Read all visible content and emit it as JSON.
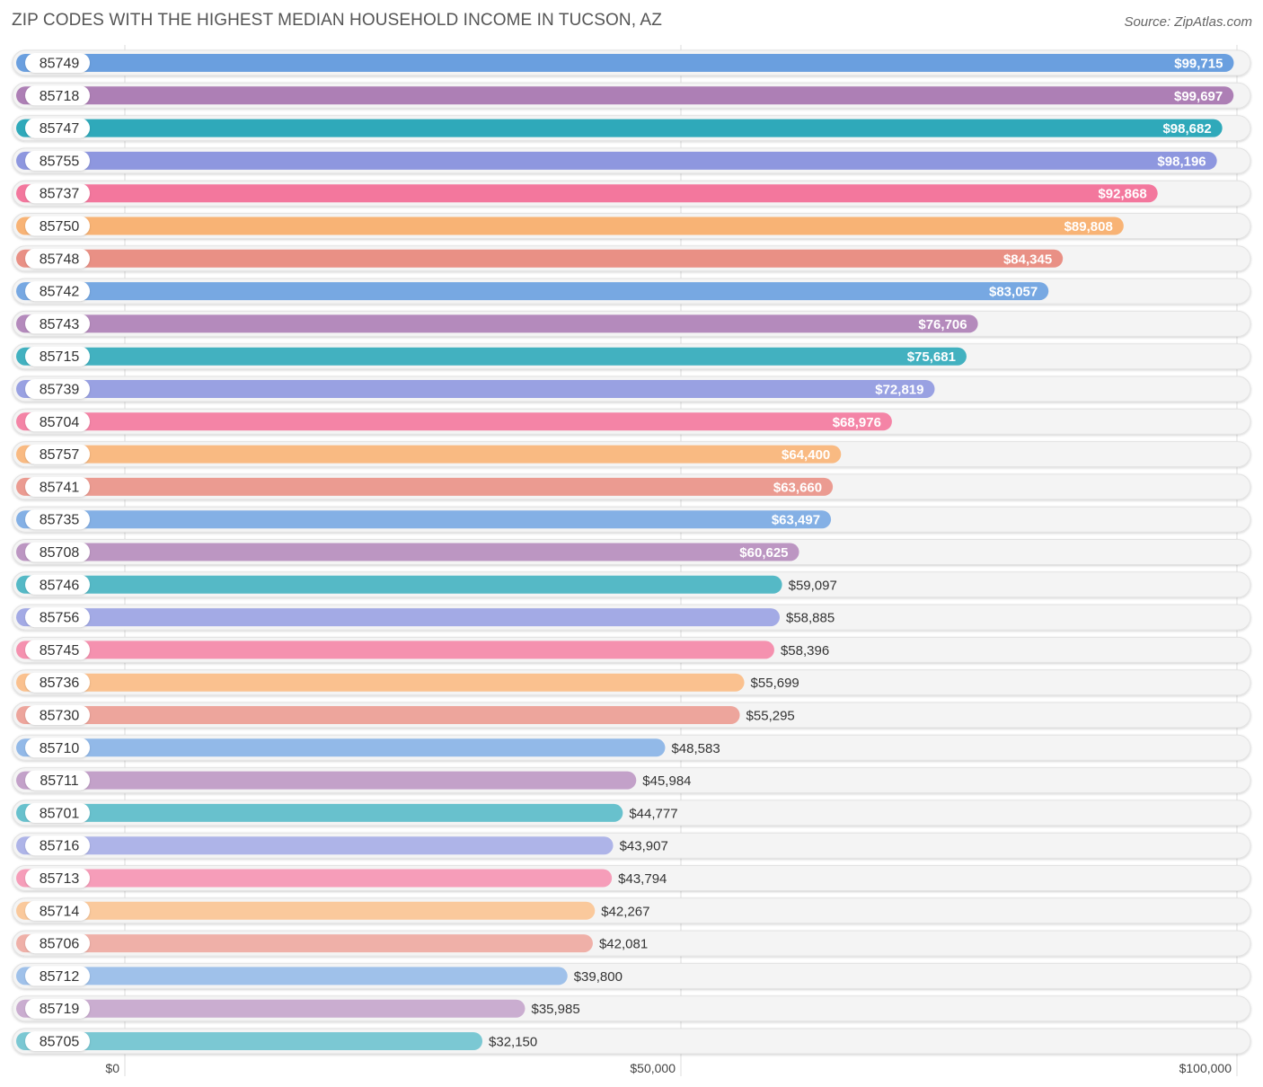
{
  "chart_data": {
    "type": "bar",
    "orientation": "horizontal",
    "title": "ZIP CODES WITH THE HIGHEST MEDIAN HOUSEHOLD INCOME IN TUCSON, AZ",
    "source": "Source: ZipAtlas.com",
    "xlabel": "",
    "ylabel": "",
    "xlim": [
      0,
      100000
    ],
    "x_ticks": [
      0,
      50000,
      100000
    ],
    "x_tick_labels": [
      "$0",
      "$50,000",
      "$100,000"
    ],
    "categories": [
      "85749",
      "85718",
      "85747",
      "85755",
      "85737",
      "85750",
      "85748",
      "85742",
      "85743",
      "85715",
      "85739",
      "85704",
      "85757",
      "85741",
      "85735",
      "85708",
      "85746",
      "85756",
      "85745",
      "85736",
      "85730",
      "85710",
      "85711",
      "85701",
      "85716",
      "85713",
      "85714",
      "85706",
      "85712",
      "85719",
      "85705"
    ],
    "values": [
      99715,
      99697,
      98682,
      98196,
      92868,
      89808,
      84345,
      83057,
      76706,
      75681,
      72819,
      68976,
      64400,
      63660,
      63497,
      60625,
      59097,
      58885,
      58396,
      55699,
      55295,
      48583,
      45984,
      44777,
      43907,
      43794,
      42267,
      42081,
      39800,
      35985,
      32150
    ],
    "value_labels": [
      "$99,715",
      "$99,697",
      "$98,682",
      "$98,196",
      "$92,868",
      "$89,808",
      "$84,345",
      "$83,057",
      "$76,706",
      "$75,681",
      "$72,819",
      "$68,976",
      "$64,400",
      "$63,660",
      "$63,497",
      "$60,625",
      "$59,097",
      "$58,885",
      "$58,396",
      "$55,699",
      "$55,295",
      "$48,583",
      "$45,984",
      "$44,777",
      "$43,907",
      "$43,794",
      "$42,267",
      "$42,081",
      "$39,800",
      "$35,985",
      "$32,150"
    ],
    "palette": [
      "#6a9fdf",
      "#ac7db4",
      "#2aa7b8",
      "#8a93de",
      "#f27098",
      "#f8ae6c",
      "#e7877b"
    ],
    "grid": true
  }
}
